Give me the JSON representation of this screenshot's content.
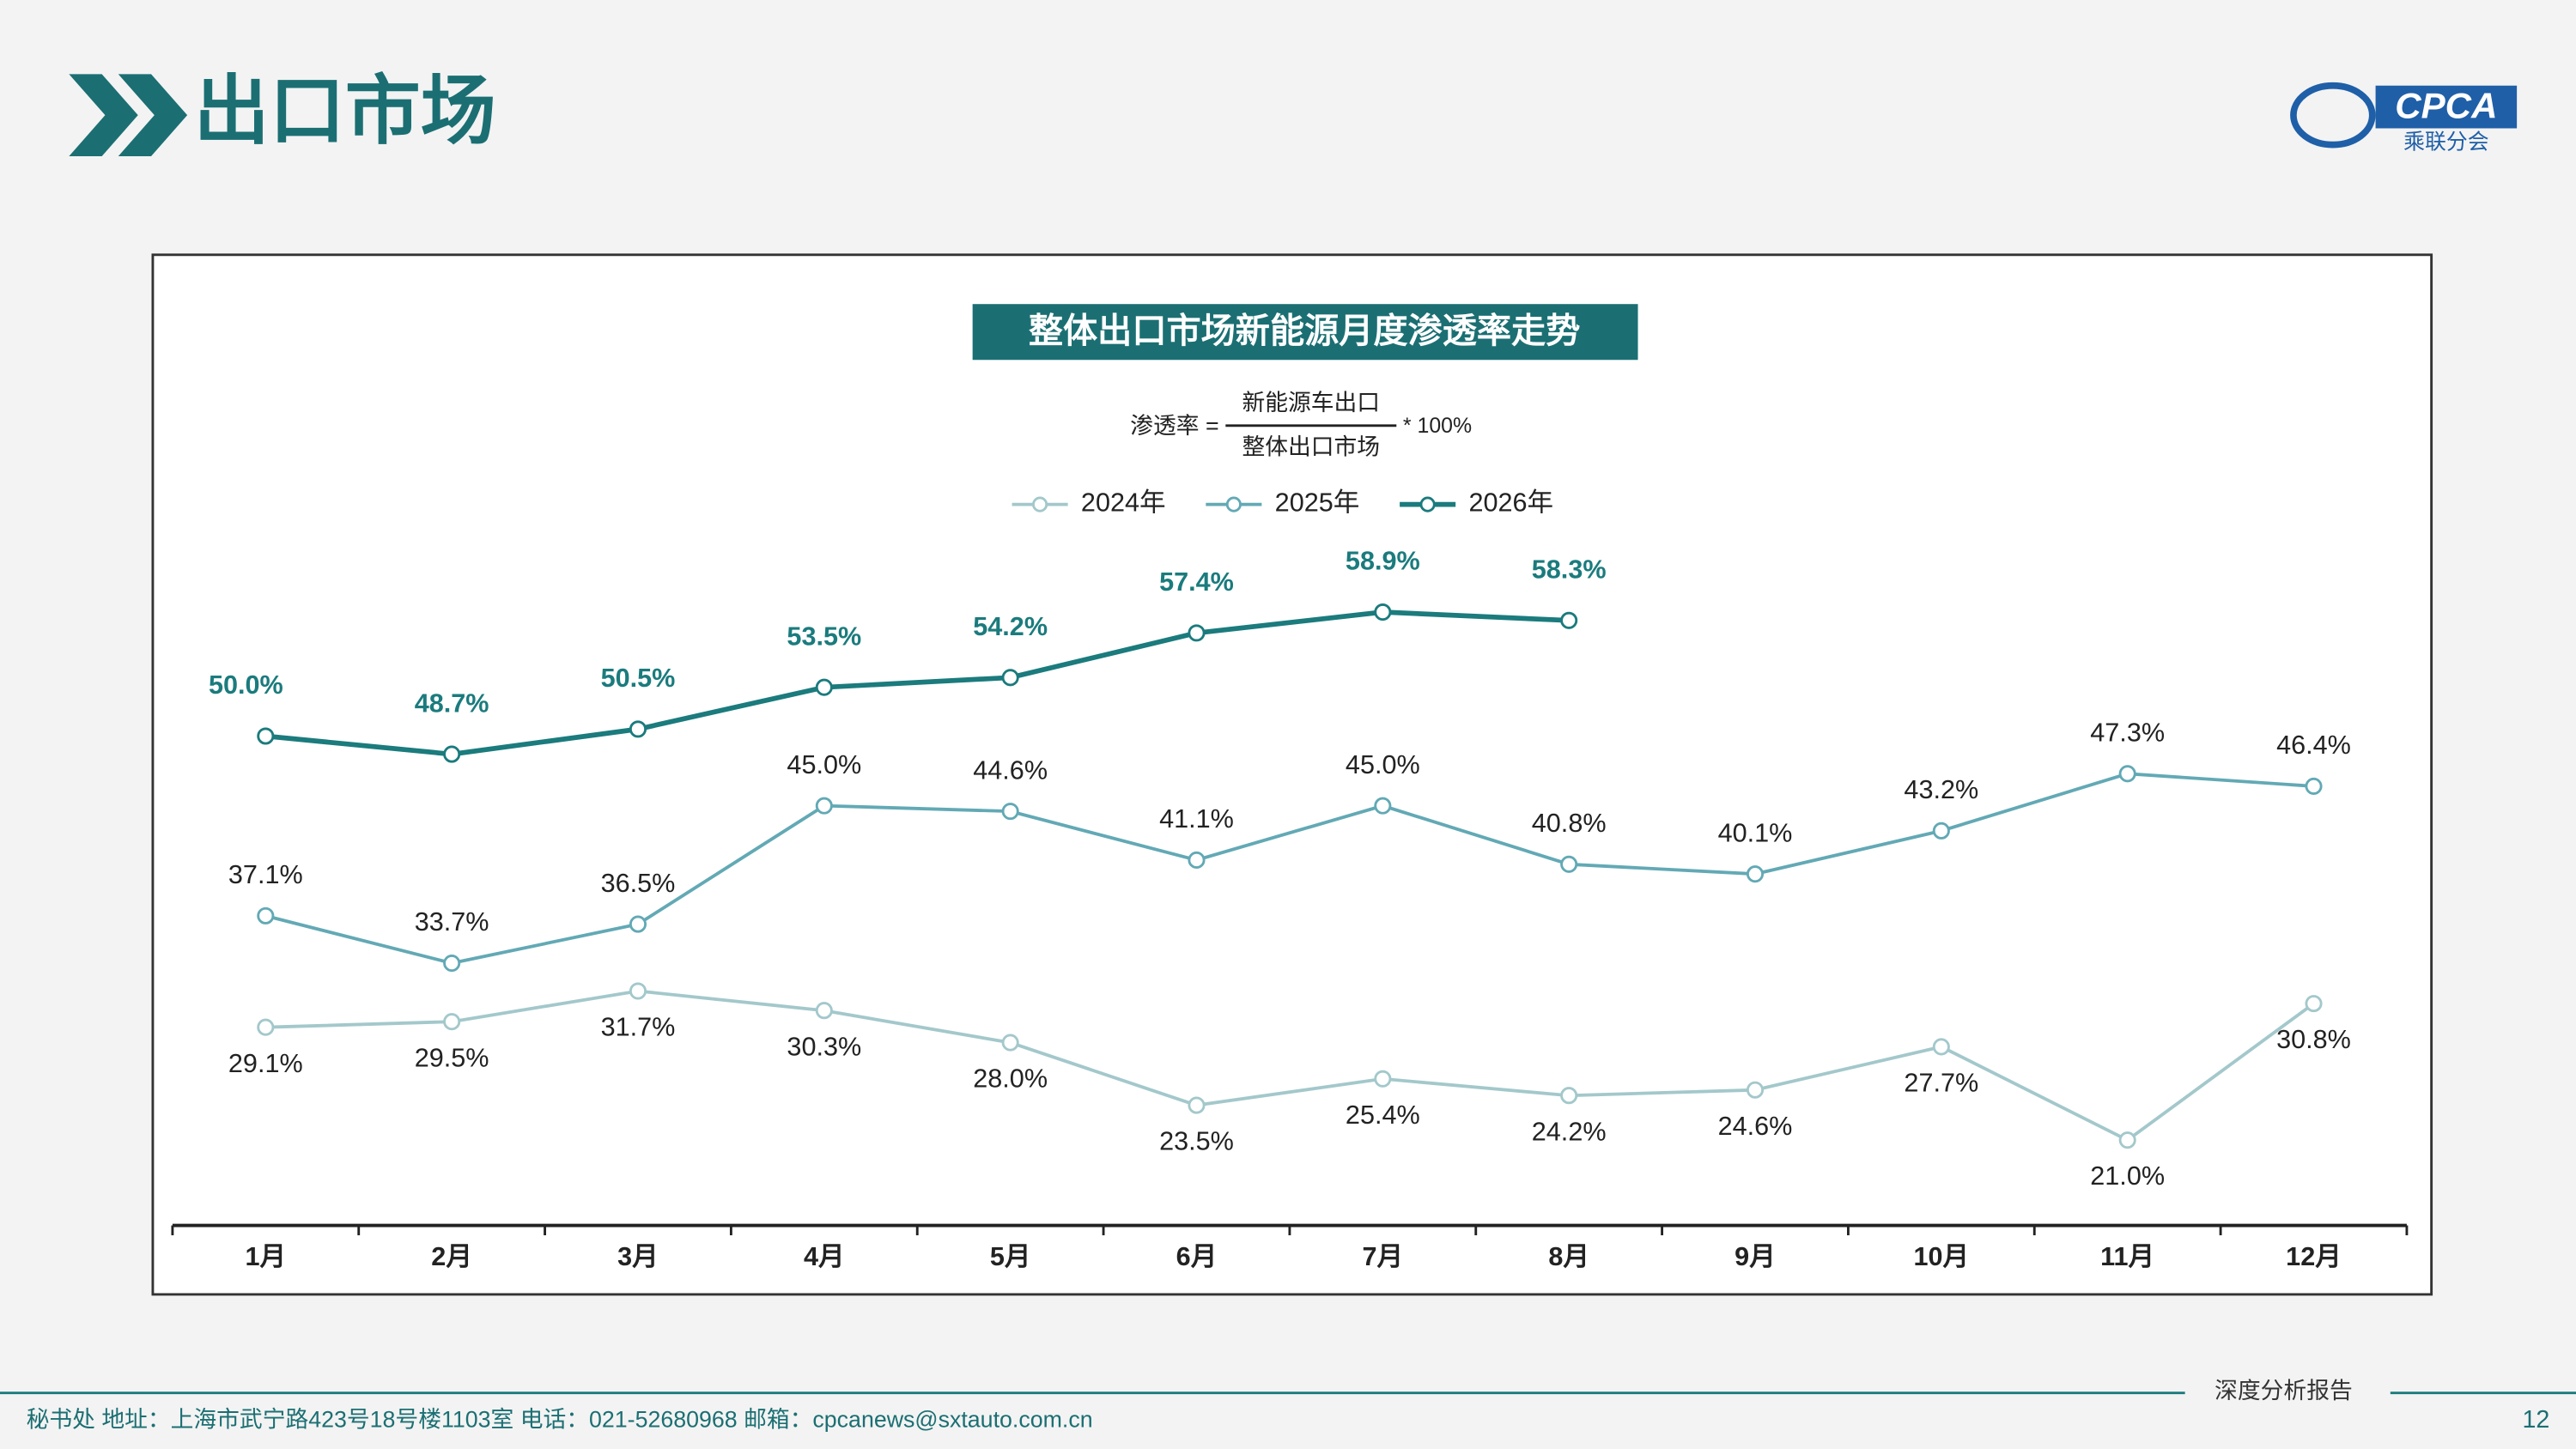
{
  "header": {
    "title": "出口市场",
    "logo_text": "CPCA",
    "logo_subtext": "乘联分会"
  },
  "chart_data": {
    "type": "line",
    "title": "整体出口市场新能源月度渗透率走势",
    "formula": {
      "lhs": "渗透率 =",
      "numerator": "新能源车出口",
      "denominator": "整体出口市场",
      "multiplier": "* 100%"
    },
    "categories": [
      "1月",
      "2月",
      "3月",
      "4月",
      "5月",
      "6月",
      "7月",
      "8月",
      "9月",
      "10月",
      "11月",
      "12月"
    ],
    "series": [
      {
        "name": "2024年",
        "color": "#a3c8cb",
        "values": [
          29.1,
          29.5,
          31.7,
          30.3,
          28.0,
          23.5,
          25.4,
          24.2,
          24.6,
          27.7,
          21.0,
          30.8
        ],
        "value_labels": [
          "29.1%",
          "29.5%",
          "31.7%",
          "30.3%",
          "28.0%",
          "23.5%",
          "25.4%",
          "24.2%",
          "24.6%",
          "27.7%",
          "21.0%",
          "30.8%"
        ]
      },
      {
        "name": "2025年",
        "color": "#62a9b5",
        "values": [
          37.1,
          33.7,
          36.5,
          45.0,
          44.6,
          41.1,
          45.0,
          40.8,
          40.1,
          43.2,
          47.3,
          46.4
        ],
        "value_labels": [
          "37.1%",
          "33.7%",
          "36.5%",
          "45.0%",
          "44.6%",
          "41.1%",
          "45.0%",
          "40.8%",
          "40.1%",
          "43.2%",
          "47.3%",
          "46.4%"
        ]
      },
      {
        "name": "2026年",
        "color": "#1b7b7d",
        "values": [
          50.0,
          48.7,
          50.5,
          53.5,
          54.2,
          57.4,
          58.9,
          58.3,
          null,
          null,
          null,
          null
        ],
        "value_labels": [
          "50.0%",
          "48.7%",
          "50.5%",
          "53.5%",
          "54.2%",
          "57.4%",
          "58.9%",
          "58.3%",
          null,
          null,
          null,
          null
        ]
      }
    ]
  },
  "footer": {
    "contact": "秘书处   地址：上海市武宁路423号18号楼1103室   电话：021-52680968   邮箱：cpcanews@sxtauto.com.cn",
    "report": "深度分析报告",
    "page": "12"
  }
}
